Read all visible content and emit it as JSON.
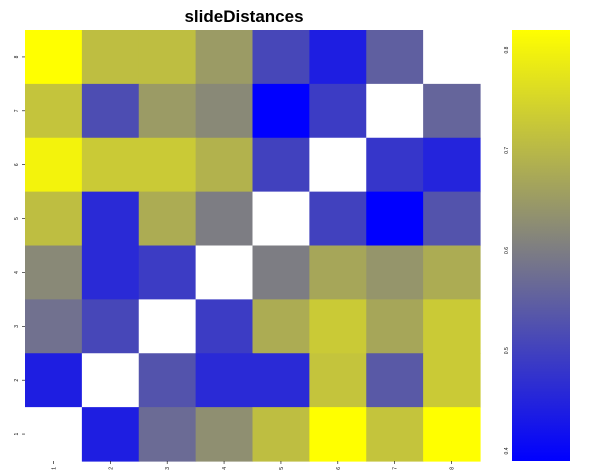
{
  "chart_data": {
    "type": "heatmap",
    "title": "slideDistances",
    "xlabel": "",
    "ylabel": "",
    "x_ticks": [
      "1",
      "2",
      "3",
      "4",
      "5",
      "6",
      "7",
      "8"
    ],
    "y_ticks": [
      "1",
      "2",
      "3",
      "4",
      "5",
      "6",
      "7",
      "8"
    ],
    "colorbar": {
      "ticks": [
        "0.4",
        "0.5",
        "0.6",
        "0.7",
        "0.8"
      ],
      "tick_values": [
        0.4,
        0.5,
        0.6,
        0.7,
        0.8
      ],
      "range": [
        0.39,
        0.82
      ],
      "colors": [
        "#0000ff",
        "#808080",
        "#ffff00"
      ]
    },
    "diagonal_color": "#ffffff",
    "rows_top_to_bottom": [
      [
        0.82,
        0.71,
        0.71,
        0.65,
        0.51,
        0.44,
        0.55,
        null
      ],
      [
        0.72,
        0.52,
        0.65,
        0.62,
        0.39,
        0.49,
        null,
        0.56
      ],
      [
        0.8,
        0.73,
        0.73,
        0.69,
        0.5,
        null,
        0.48,
        0.45
      ],
      [
        0.71,
        0.46,
        0.68,
        0.6,
        null,
        0.5,
        0.39,
        0.53
      ],
      [
        0.62,
        0.46,
        0.49,
        null,
        0.6,
        0.67,
        0.64,
        0.68
      ],
      [
        0.58,
        0.51,
        null,
        0.49,
        0.68,
        0.73,
        0.67,
        0.73
      ],
      [
        0.44,
        null,
        0.53,
        0.46,
        0.46,
        0.72,
        0.54,
        0.73
      ],
      [
        null,
        0.44,
        0.57,
        0.63,
        0.71,
        0.82,
        0.72,
        0.82
      ]
    ]
  }
}
